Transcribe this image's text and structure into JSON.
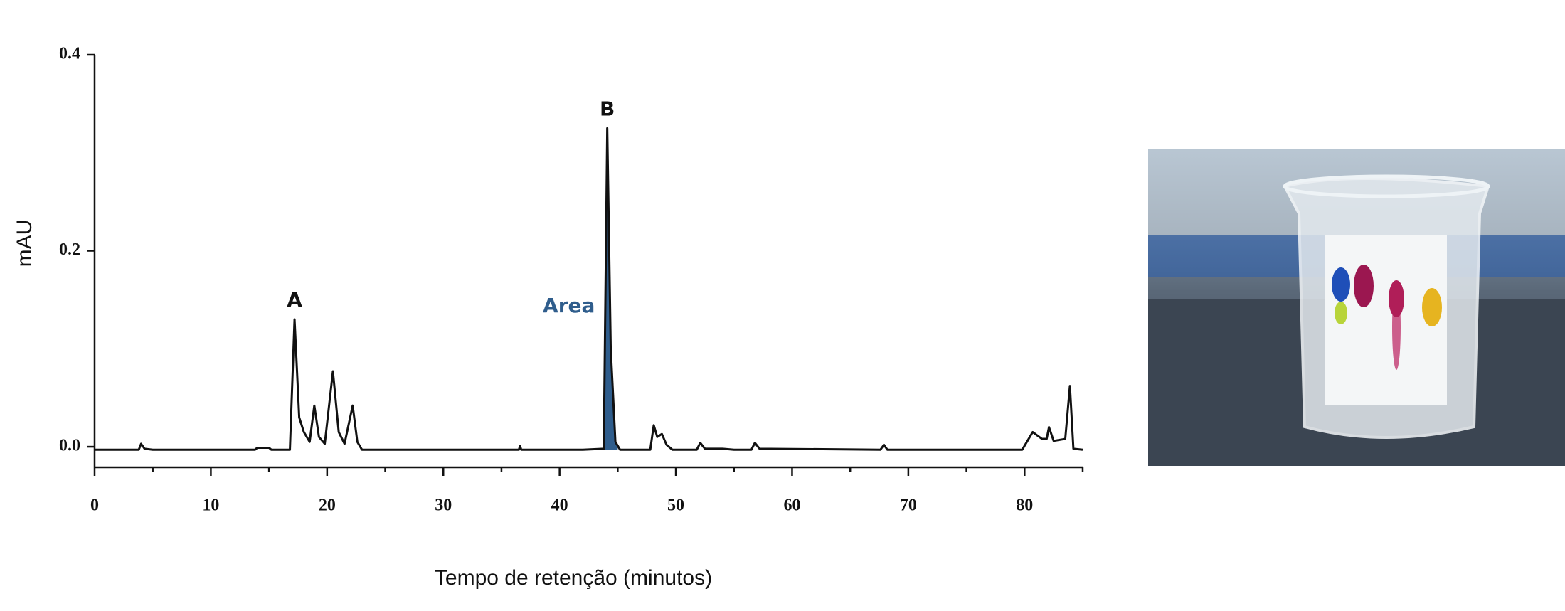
{
  "chart_data": {
    "type": "line",
    "x_label": "Tempo de retenção (minutos)",
    "y_label": "mAU",
    "x": [
      0,
      3.8,
      4,
      4.3,
      5,
      13.8,
      14,
      15,
      15.2,
      16.8,
      17.2,
      17.6,
      18,
      18.5,
      18.9,
      19.3,
      19.8,
      20.5,
      21,
      21.5,
      22.2,
      22.6,
      23,
      36.5,
      36.6,
      36.7,
      42,
      43.8,
      44.1,
      44.4,
      44.8,
      45.2,
      47.8,
      48.1,
      48.4,
      48.8,
      49.2,
      49.7,
      51.8,
      52.1,
      52.5,
      54,
      55,
      56.5,
      56.8,
      57.2,
      67.6,
      67.9,
      68.2,
      79.8,
      80.7,
      81.5,
      81.9,
      82.1,
      82.5,
      83.5,
      83.9,
      84.2,
      85
    ],
    "values": [
      -0.003,
      -0.003,
      0.003,
      -0.002,
      -0.003,
      -0.003,
      -0.001,
      -0.001,
      -0.003,
      -0.003,
      0.13,
      0.03,
      0.015,
      0.005,
      0.042,
      0.01,
      0.003,
      0.077,
      0.015,
      0.003,
      0.042,
      0.005,
      -0.003,
      -0.003,
      0.001,
      -0.003,
      -0.003,
      -0.002,
      0.325,
      0.1,
      0.005,
      -0.003,
      -0.003,
      0.022,
      0.01,
      0.013,
      0.002,
      -0.003,
      -0.003,
      0.004,
      -0.002,
      -0.002,
      -0.003,
      -0.003,
      0.004,
      -0.002,
      -0.003,
      0.002,
      -0.003,
      -0.003,
      0.015,
      0.008,
      0.008,
      0.02,
      0.006,
      0.008,
      0.062,
      -0.002,
      -0.003
    ],
    "color": "#111111",
    "xlim": [
      0,
      85
    ],
    "ylim": [
      -0.021,
      0.4
    ],
    "xticks": [
      0,
      10,
      20,
      30,
      40,
      50,
      60,
      70,
      80
    ],
    "xminorticks": [
      5,
      15,
      25,
      35,
      45,
      55,
      65,
      75,
      85
    ],
    "yticks": [
      {
        "value": 0,
        "label": "0.0"
      },
      0.2,
      0.4
    ],
    "highlight": {
      "label": "Area",
      "x_range": [
        43.8,
        45.0
      ],
      "color": "#2f5d8c",
      "label_x": 40.8,
      "label_y": 0.143
    },
    "annotations": [
      {
        "text": "A",
        "x": 17.2,
        "y": 0.13
      },
      {
        "text": "B",
        "x": 44.1,
        "y": 0.325
      }
    ]
  }
}
